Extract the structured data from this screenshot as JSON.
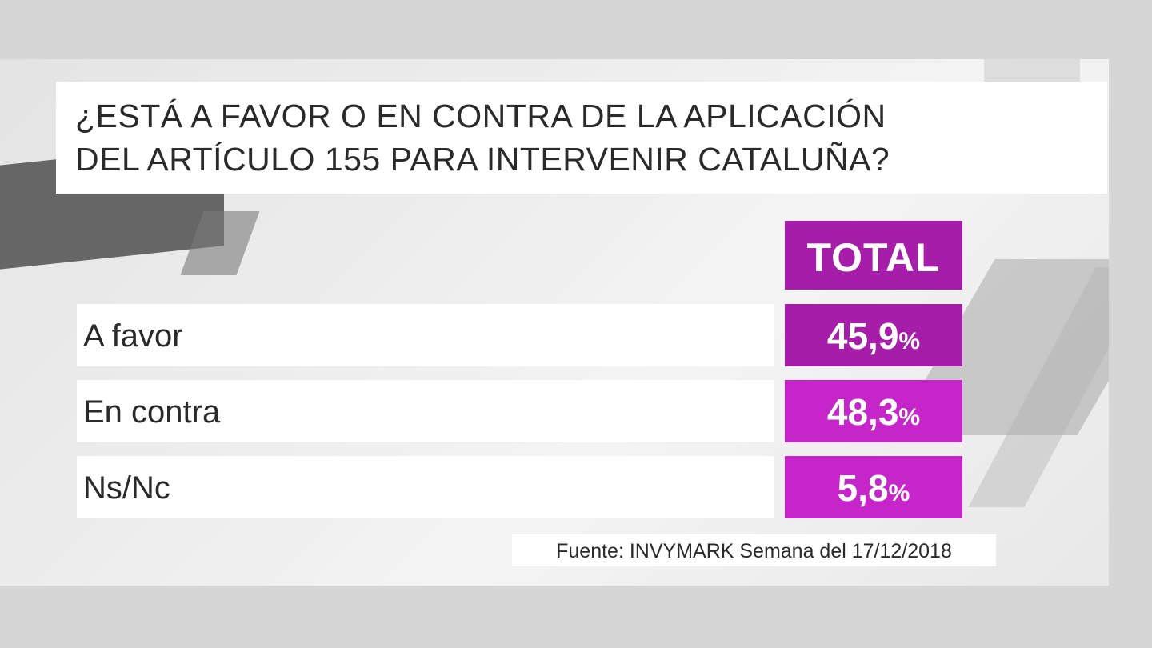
{
  "title": {
    "line1": "¿ESTÁ A FAVOR O EN CONTRA DE LA APLICACIÓN",
    "line2": "DEL ARTÍCULO 155 PARA INTERVENIR CATALUÑA?"
  },
  "column_header": "TOTAL",
  "rows": [
    {
      "label": "A favor",
      "value": "45,9",
      "pct": "%",
      "color": "#a51da8"
    },
    {
      "label": "En contra",
      "value": "48,3",
      "pct": "%",
      "color": "#c525c9"
    },
    {
      "label": "Ns/Nc",
      "value": "5,8",
      "pct": "%",
      "color": "#c525c9"
    }
  ],
  "source": "Fuente: INVYMARK  Semana del 17/12/2018",
  "colors": {
    "header_bg": "#a51da8",
    "accent_dark": "#a51da8",
    "accent_light": "#c525c9"
  },
  "chart_data": {
    "type": "table",
    "title": "¿ESTÁ A FAVOR O EN CONTRA DE LA APLICACIÓN DEL ARTÍCULO 155 PARA INTERVENIR CATALUÑA?",
    "columns": [
      "TOTAL"
    ],
    "categories": [
      "A favor",
      "En contra",
      "Ns/Nc"
    ],
    "values": [
      45.9,
      48.3,
      5.8
    ],
    "unit": "%"
  }
}
